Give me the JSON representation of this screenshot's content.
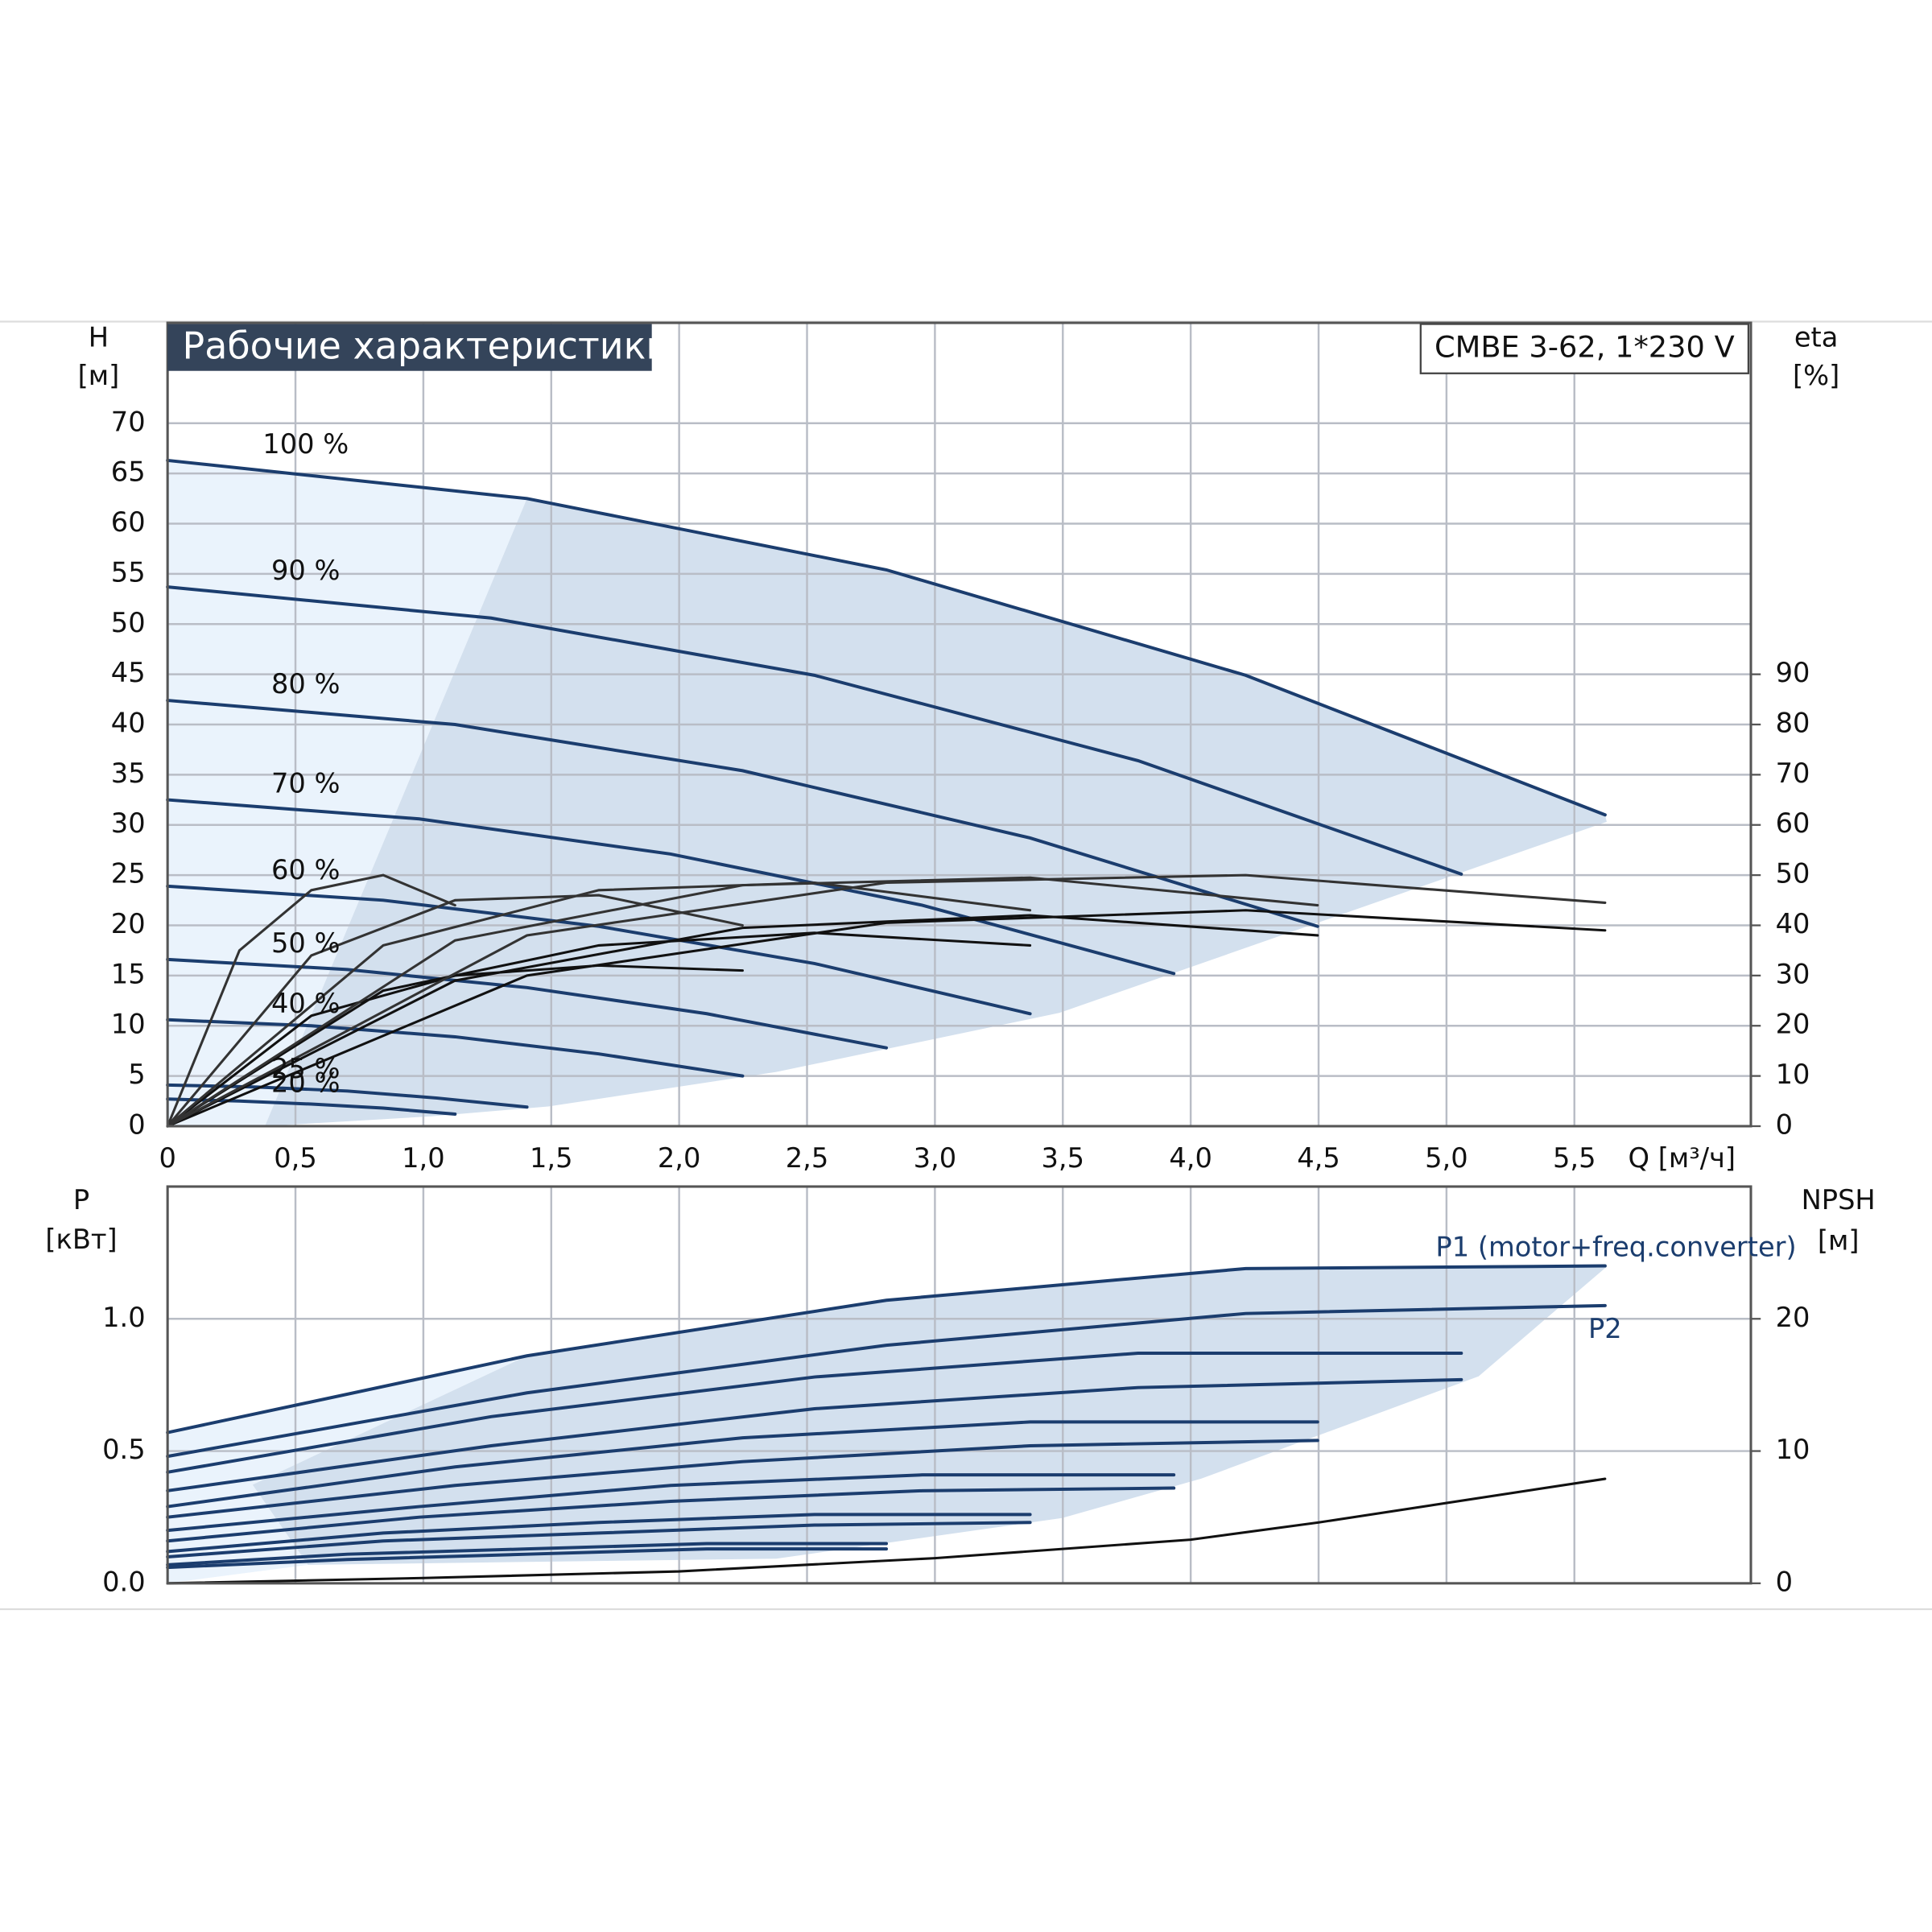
{
  "chart_data": [
    {
      "type": "line",
      "title": "Рабочие характеристики",
      "subtitle": "CMBE 3-62, 1*230 V",
      "y_label": "H",
      "y_unit": "[м]",
      "y2_label": "eta",
      "y2_unit": "[%]",
      "x_label": "Q [м³/ч]",
      "xlim": [
        0,
        6.19
      ],
      "xticks": [
        0,
        {
          "value": 0.5,
          "label": "0,5"
        },
        {
          "value": 1,
          "label": "1,0"
        },
        {
          "value": 1.5,
          "label": "1,5"
        },
        {
          "value": 2,
          "label": "2,0"
        },
        {
          "value": 2.5,
          "label": "2,5"
        },
        {
          "value": 3,
          "label": "3,0"
        },
        {
          "value": 3.5,
          "label": "3,5"
        },
        {
          "value": 4,
          "label": "4,0"
        },
        {
          "value": 4.5,
          "label": "4,5"
        },
        {
          "value": 5,
          "label": "5,0"
        },
        {
          "value": 5.5,
          "label": "5,5"
        }
      ],
      "ylim": [
        0,
        80
      ],
      "yticks": [
        0,
        5,
        10,
        15,
        20,
        25,
        30,
        35,
        40,
        45,
        50,
        55,
        60,
        65,
        70
      ],
      "y2lim": [
        0,
        160
      ],
      "y2ticks": [
        0,
        10,
        20,
        30,
        40,
        50,
        60,
        70,
        80,
        90
      ],
      "grid": true,
      "series": [
        {
          "name": "100 %",
          "color": "#1b3d6e",
          "x": [
            0,
            1.405,
            2.81,
            4.215,
            5.62
          ],
          "values": [
            66.3,
            62.5,
            55.4,
            44.9,
            31.0
          ]
        },
        {
          "name": "90 %",
          "color": "#1b3d6e",
          "x": [
            0,
            1.265,
            2.529,
            3.794,
            5.058
          ],
          "values": [
            53.7,
            50.6,
            44.9,
            36.4,
            25.1
          ]
        },
        {
          "name": "80 %",
          "color": "#1b3d6e",
          "x": [
            0,
            1.124,
            2.248,
            3.372,
            4.496
          ],
          "values": [
            42.4,
            40.0,
            35.4,
            28.7,
            19.9
          ]
        },
        {
          "name": "70 %",
          "color": "#1b3d6e",
          "x": [
            0,
            0.984,
            1.967,
            2.951,
            3.934
          ],
          "values": [
            32.5,
            30.6,
            27.1,
            22.0,
            15.2
          ]
        },
        {
          "name": "60 %",
          "color": "#1b3d6e",
          "x": [
            0,
            0.843,
            1.686,
            2.529,
            3.372
          ],
          "values": [
            23.9,
            22.5,
            19.9,
            16.2,
            11.2
          ]
        },
        {
          "name": "50 %",
          "color": "#1b3d6e",
          "x": [
            0,
            0.703,
            1.405,
            2.108,
            2.81
          ],
          "values": [
            16.6,
            15.6,
            13.8,
            11.2,
            7.8
          ]
        },
        {
          "name": "40 %",
          "color": "#1b3d6e",
          "x": [
            0,
            0.562,
            1.124,
            1.686,
            2.248
          ],
          "values": [
            10.6,
            10.0,
            8.9,
            7.2,
            5.0
          ]
        },
        {
          "name": "25 %",
          "color": "#1b3d6e",
          "x": [
            0,
            0.351,
            0.703,
            1.054,
            1.405
          ],
          "values": [
            4.1,
            3.9,
            3.5,
            2.8,
            1.9
          ]
        },
        {
          "name": "20 %",
          "color": "#1b3d6e",
          "x": [
            0,
            0.281,
            0.562,
            0.843,
            1.124
          ],
          "values": [
            2.7,
            2.5,
            2.2,
            1.8,
            1.2
          ]
        },
        {
          "axis": "y2",
          "color": "#111111",
          "x": [
            0,
            1.405,
            2.81,
            4.215,
            5.62
          ],
          "values": [
            0,
            30,
            40.5,
            43,
            39
          ]
        },
        {
          "axis": "y2",
          "color": "#111111",
          "x": [
            0,
            1.124,
            2.248,
            3.372,
            4.496
          ],
          "values": [
            0,
            29,
            39.5,
            42,
            38
          ]
        },
        {
          "axis": "y2",
          "color": "#111111",
          "x": [
            0,
            0.843,
            1.686,
            2.529,
            3.372
          ],
          "values": [
            0,
            27,
            36,
            38.5,
            36
          ]
        },
        {
          "axis": "y2",
          "color": "#111111",
          "x": [
            0,
            0.562,
            1.124,
            1.686,
            2.248
          ],
          "values": [
            0,
            22,
            30,
            32,
            31
          ]
        },
        {
          "axis": "y2",
          "color": "#333333",
          "x": [
            0,
            1.405,
            2.81,
            4.215,
            5.62
          ],
          "values": [
            0,
            38,
            48.5,
            50,
            44.5
          ]
        },
        {
          "axis": "y2",
          "color": "#333333",
          "x": [
            0,
            1.124,
            2.248,
            3.372,
            4.496
          ],
          "values": [
            0,
            37,
            48,
            49.5,
            44
          ]
        },
        {
          "axis": "y2",
          "color": "#333333",
          "x": [
            0,
            0.843,
            1.686,
            2.529,
            3.372
          ],
          "values": [
            0,
            36,
            47,
            48.5,
            43
          ]
        },
        {
          "axis": "y2",
          "color": "#333333",
          "x": [
            0,
            0.562,
            1.124,
            1.686,
            2.248
          ],
          "values": [
            0,
            34,
            45,
            46,
            40
          ]
        },
        {
          "axis": "y2",
          "color": "#333333",
          "x": [
            0,
            0.281,
            0.562,
            0.843,
            1.124
          ],
          "values": [
            0,
            35,
            47,
            50,
            44
          ]
        }
      ]
    },
    {
      "type": "line",
      "y_label": "P",
      "y_unit": "[кВт]",
      "y2_label": "NPSH",
      "y2_unit": "[м]",
      "xlim": [
        0,
        6.19
      ],
      "ylim": [
        0,
        1.5
      ],
      "yticks": [
        {
          "value": 0,
          "label": "0.0"
        },
        {
          "value": 0.5,
          "label": "0.5"
        },
        {
          "value": 1,
          "label": "1.0"
        }
      ],
      "y2lim": [
        0,
        30
      ],
      "y2ticks": [
        0,
        10,
        20
      ],
      "grid": true,
      "series": [
        {
          "name": "P1 (motor+freq.converter)",
          "color": "#1b3d6e",
          "x": [
            0,
            1.405,
            2.81,
            4.215,
            5.62
          ],
          "values": [
            0.57,
            0.86,
            1.07,
            1.19,
            1.2
          ]
        },
        {
          "name": "P2",
          "color": "#1b3d6e",
          "x": [
            0,
            1.405,
            2.81,
            4.215,
            5.62
          ],
          "values": [
            0.48,
            0.72,
            0.9,
            1.02,
            1.05
          ]
        },
        {
          "color": "#1b3d6e",
          "x": [
            0,
            1.265,
            2.529,
            3.794,
            5.058
          ],
          "values": [
            0.42,
            0.63,
            0.78,
            0.87,
            0.87
          ]
        },
        {
          "color": "#1b3d6e",
          "x": [
            0,
            1.265,
            2.529,
            3.794,
            5.058
          ],
          "values": [
            0.35,
            0.52,
            0.66,
            0.74,
            0.77
          ]
        },
        {
          "color": "#1b3d6e",
          "x": [
            0,
            1.124,
            2.248,
            3.372,
            4.496
          ],
          "values": [
            0.29,
            0.44,
            0.55,
            0.61,
            0.61
          ]
        },
        {
          "color": "#1b3d6e",
          "x": [
            0,
            1.124,
            2.248,
            3.372,
            4.496
          ],
          "values": [
            0.25,
            0.37,
            0.46,
            0.52,
            0.54
          ]
        },
        {
          "color": "#1b3d6e",
          "x": [
            0,
            0.984,
            1.967,
            2.951,
            3.934
          ],
          "values": [
            0.2,
            0.29,
            0.37,
            0.41,
            0.41
          ]
        },
        {
          "color": "#1b3d6e",
          "x": [
            0,
            0.984,
            1.967,
            2.951,
            3.934
          ],
          "values": [
            0.16,
            0.25,
            0.31,
            0.35,
            0.36
          ]
        },
        {
          "color": "#1b3d6e",
          "x": [
            0,
            0.843,
            1.686,
            2.529,
            3.372
          ],
          "values": [
            0.12,
            0.19,
            0.23,
            0.26,
            0.26
          ]
        },
        {
          "color": "#1b3d6e",
          "x": [
            0,
            0.843,
            1.686,
            2.529,
            3.372
          ],
          "values": [
            0.1,
            0.16,
            0.19,
            0.22,
            0.23
          ]
        },
        {
          "color": "#1b3d6e",
          "x": [
            0,
            0.703,
            1.405,
            2.108,
            2.81
          ],
          "values": [
            0.07,
            0.11,
            0.13,
            0.15,
            0.15
          ]
        },
        {
          "color": "#1b3d6e",
          "x": [
            0,
            0.703,
            1.405,
            2.108,
            2.81
          ],
          "values": [
            0.06,
            0.09,
            0.11,
            0.13,
            0.13
          ]
        },
        {
          "axis": "y2",
          "color": "#111111",
          "x": [
            0,
            1,
            2,
            3,
            4,
            4.5,
            5.62
          ],
          "values": [
            0,
            0.4,
            0.9,
            1.9,
            3.3,
            4.6,
            7.9
          ]
        }
      ]
    }
  ]
}
